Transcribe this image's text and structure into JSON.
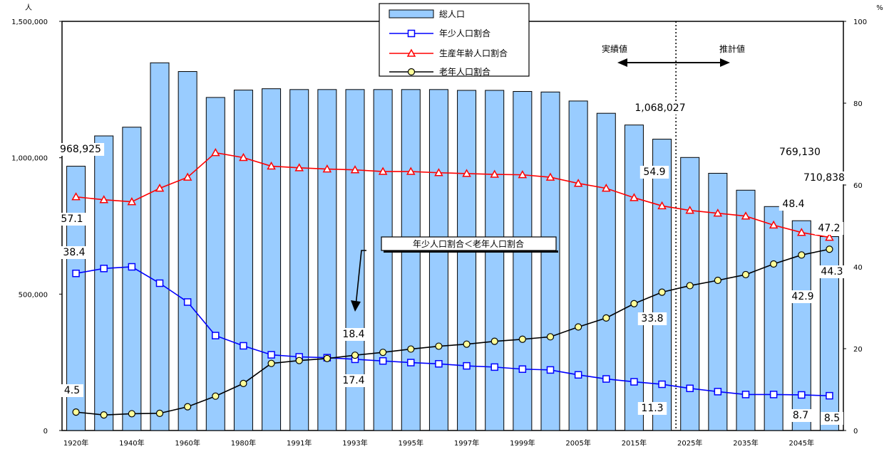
{
  "chart_data": {
    "type": "bar",
    "y_unit_left": "人",
    "y_unit_right": "%",
    "categories": [
      "1920年",
      "",
      "1940年",
      "",
      "1960年",
      "",
      "1980年",
      "",
      "1991年",
      "",
      "1993年",
      "",
      "1995年",
      "",
      "1997年",
      "",
      "1999年",
      "",
      "2005年",
      "",
      "2015年",
      "",
      "2025年",
      "",
      "2035年",
      "",
      "2045年",
      ""
    ],
    "left_ticks": [
      {
        "v": 0,
        "t": "0"
      },
      {
        "v": 500000,
        "t": "500,000"
      },
      {
        "v": 1000000,
        "t": "1,000,000"
      },
      {
        "v": 1500000,
        "t": "1,500,000"
      }
    ],
    "right_ticks": [
      {
        "v": 0,
        "t": "0"
      },
      {
        "v": 20,
        "t": "20"
      },
      {
        "v": 40,
        "t": "40"
      },
      {
        "v": 60,
        "t": "60"
      },
      {
        "v": 80,
        "t": "80"
      },
      {
        "v": 100,
        "t": "100"
      }
    ],
    "ylim_left": [
      0,
      1500000
    ],
    "ylim_right": [
      0,
      100
    ],
    "series": [
      {
        "name": "総人口",
        "type": "bar",
        "axis": "left",
        "color": "#99ccff",
        "values": [
          968925,
          1080000,
          1112000,
          1348000,
          1316000,
          1221000,
          1248000,
          1253000,
          1250000,
          1250000,
          1250000,
          1250000,
          1250000,
          1250000,
          1247000,
          1247000,
          1243000,
          1241000,
          1208000,
          1163000,
          1120000,
          1068027,
          1001000,
          943000,
          881000,
          821000,
          769130,
          710838
        ]
      },
      {
        "name": "年少人口割合",
        "type": "line",
        "axis": "right",
        "color": "#0000ff",
        "marker": "square",
        "values": [
          38.4,
          39.6,
          40.0,
          36.0,
          31.4,
          23.2,
          20.7,
          18.5,
          18.0,
          17.8,
          17.4,
          17.0,
          16.6,
          16.3,
          15.8,
          15.5,
          15.0,
          14.8,
          13.6,
          12.6,
          11.9,
          11.3,
          10.3,
          9.5,
          8.8,
          8.8,
          8.7,
          8.5
        ]
      },
      {
        "name": "生産年齢人口割合",
        "type": "line",
        "axis": "right",
        "color": "#ff0000",
        "marker": "triangle",
        "values": [
          57.1,
          56.4,
          55.9,
          59.2,
          61.9,
          67.9,
          66.7,
          64.6,
          64.2,
          63.9,
          63.7,
          63.3,
          63.3,
          63.0,
          62.8,
          62.6,
          62.5,
          61.9,
          60.4,
          59.2,
          56.9,
          54.9,
          53.8,
          53.1,
          52.4,
          50.2,
          48.4,
          47.2
        ]
      },
      {
        "name": "老年人口割合",
        "type": "line",
        "axis": "right",
        "color": "#000000",
        "marker": "circle",
        "marker_fill": "#ffff99",
        "values": [
          4.5,
          3.8,
          4.1,
          4.2,
          5.8,
          8.4,
          11.5,
          16.4,
          17.1,
          17.6,
          18.4,
          19.1,
          19.9,
          20.6,
          21.1,
          21.8,
          22.3,
          22.9,
          25.3,
          27.5,
          31.0,
          33.8,
          35.4,
          36.7,
          38.1,
          40.7,
          42.9,
          44.3
        ]
      }
    ],
    "annotations": {
      "actual": "実績値",
      "projected": "推計値",
      "crossover": "年少人口割合＜老年人口割合",
      "pop_1920": "968,925",
      "pop_2020": "1,068,027",
      "pop_2045": "769,130",
      "pop_2050": "710,838",
      "young_1920": "38.4",
      "work_1920": "57.1",
      "old_1920": "4.5",
      "young_1993": "17.4",
      "old_1993": "18.4",
      "work_2020": "54.9",
      "old_2020": "33.8",
      "young_2020": "11.3",
      "work_2045": "48.4",
      "work_2050": "47.2",
      "old_2045": "42.9",
      "old_2050": "44.3",
      "young_2045": "8.7",
      "young_2050": "8.5"
    }
  }
}
